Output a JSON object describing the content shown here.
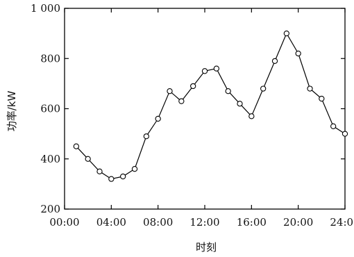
{
  "chart_data": {
    "type": "line",
    "title": "",
    "xlabel": "时刻",
    "ylabel": "功率/kW",
    "x_ticks": [
      "00:00",
      "04:00",
      "08:00",
      "12:00",
      "16:00",
      "20:00",
      "24:00"
    ],
    "y_ticks": [
      "200",
      "400",
      "600",
      "800",
      "1 000"
    ],
    "xlim": [
      0,
      24
    ],
    "ylim": [
      200,
      1000
    ],
    "grid": false,
    "legend": "none",
    "series": [
      {
        "x": [
          1,
          2,
          3,
          4,
          5,
          6,
          7,
          8,
          9,
          10,
          11,
          12,
          13,
          14,
          15,
          16,
          17,
          18,
          19,
          20,
          21,
          22,
          23,
          24
        ],
        "y": [
          450,
          400,
          350,
          320,
          330,
          360,
          490,
          560,
          670,
          630,
          690,
          750,
          760,
          670,
          620,
          570,
          680,
          790,
          900,
          820,
          680,
          640,
          530,
          500
        ]
      }
    ],
    "colors": {
      "line": "#000000",
      "marker_fill": "#ffffff",
      "marker_stroke": "#000000",
      "axis": "#000000"
    }
  }
}
